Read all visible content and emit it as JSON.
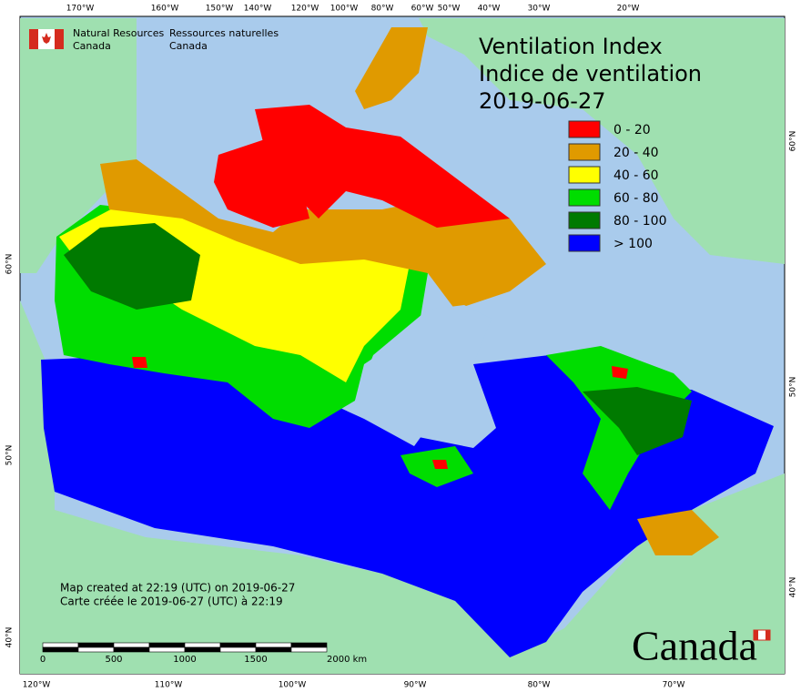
{
  "header": {
    "agency_en": "Natural Resources",
    "country_en": "Canada",
    "agency_fr": "Ressources naturelles",
    "country_fr": "Canada"
  },
  "title": {
    "line1": "Ventilation Index",
    "line2": "Indice de ventilation",
    "date": "2019-06-27"
  },
  "legend": {
    "items": [
      {
        "label": "0 - 20",
        "color": "#ff0000"
      },
      {
        "label": "20 - 40",
        "color": "#e09a00"
      },
      {
        "label": "40 - 60",
        "color": "#ffff00"
      },
      {
        "label": "60 - 80",
        "color": "#00dd00"
      },
      {
        "label": "80 - 100",
        "color": "#007a00"
      },
      {
        "label": "> 100",
        "color": "#0000ff"
      }
    ]
  },
  "graticule": {
    "top": [
      "170°W",
      "160°W",
      "150°W",
      "140°W",
      "120°W",
      "100°W",
      "80°W",
      "60°W",
      "50°W",
      "40°W",
      "30°W",
      "20°W"
    ],
    "bottom": [
      "120°W",
      "110°W",
      "100°W",
      "90°W",
      "80°W",
      "70°W"
    ],
    "left": [
      "60°N",
      "50°N",
      "40°N"
    ],
    "right": [
      "60°N",
      "50°N",
      "40°N"
    ]
  },
  "credits": {
    "line_en": "Map created at 22:19 (UTC) on 2019-06-27",
    "line_fr": "Carte créée le 2019-06-27 (UTC) à 22:19"
  },
  "scale_bar": {
    "labels": [
      "0",
      "500",
      "1000",
      "1500",
      "2000 km"
    ]
  },
  "wordmark": "Canada"
}
